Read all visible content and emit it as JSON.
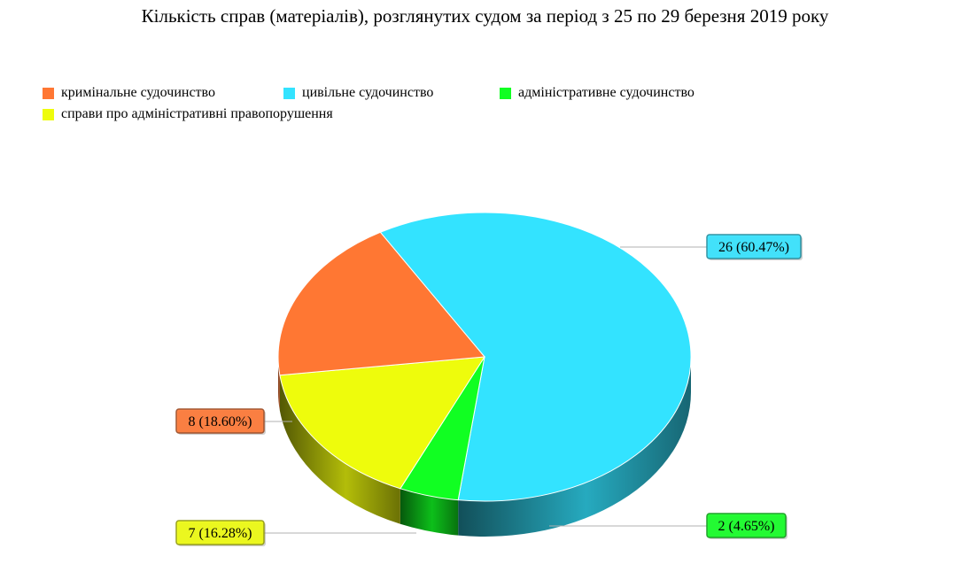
{
  "chart_data": {
    "type": "pie",
    "title": "Кількість справ (матеріалів), розглянутих судом за період з 25 по 29 березня 2019 року",
    "legend_position": "top-left",
    "three_d": true,
    "slices": [
      {
        "name": "кримінальне судочинство",
        "value": 8,
        "percent": "18.60%",
        "label": "8 (18.60%)",
        "color": "#ff7733"
      },
      {
        "name": "цивільне судочинство",
        "value": 26,
        "percent": "60.47%",
        "label": "26 (60.47%)",
        "color": "#33e3ff"
      },
      {
        "name": "адміністративне судочинство",
        "value": 2,
        "percent": "4.65%",
        "label": "2 (4.65%)",
        "color": "#11ff22"
      },
      {
        "name": "справи про адміністративні правопорушення",
        "value": 7,
        "percent": "16.28%",
        "label": "7 (16.28%)",
        "color": "#eefc0c"
      }
    ]
  }
}
